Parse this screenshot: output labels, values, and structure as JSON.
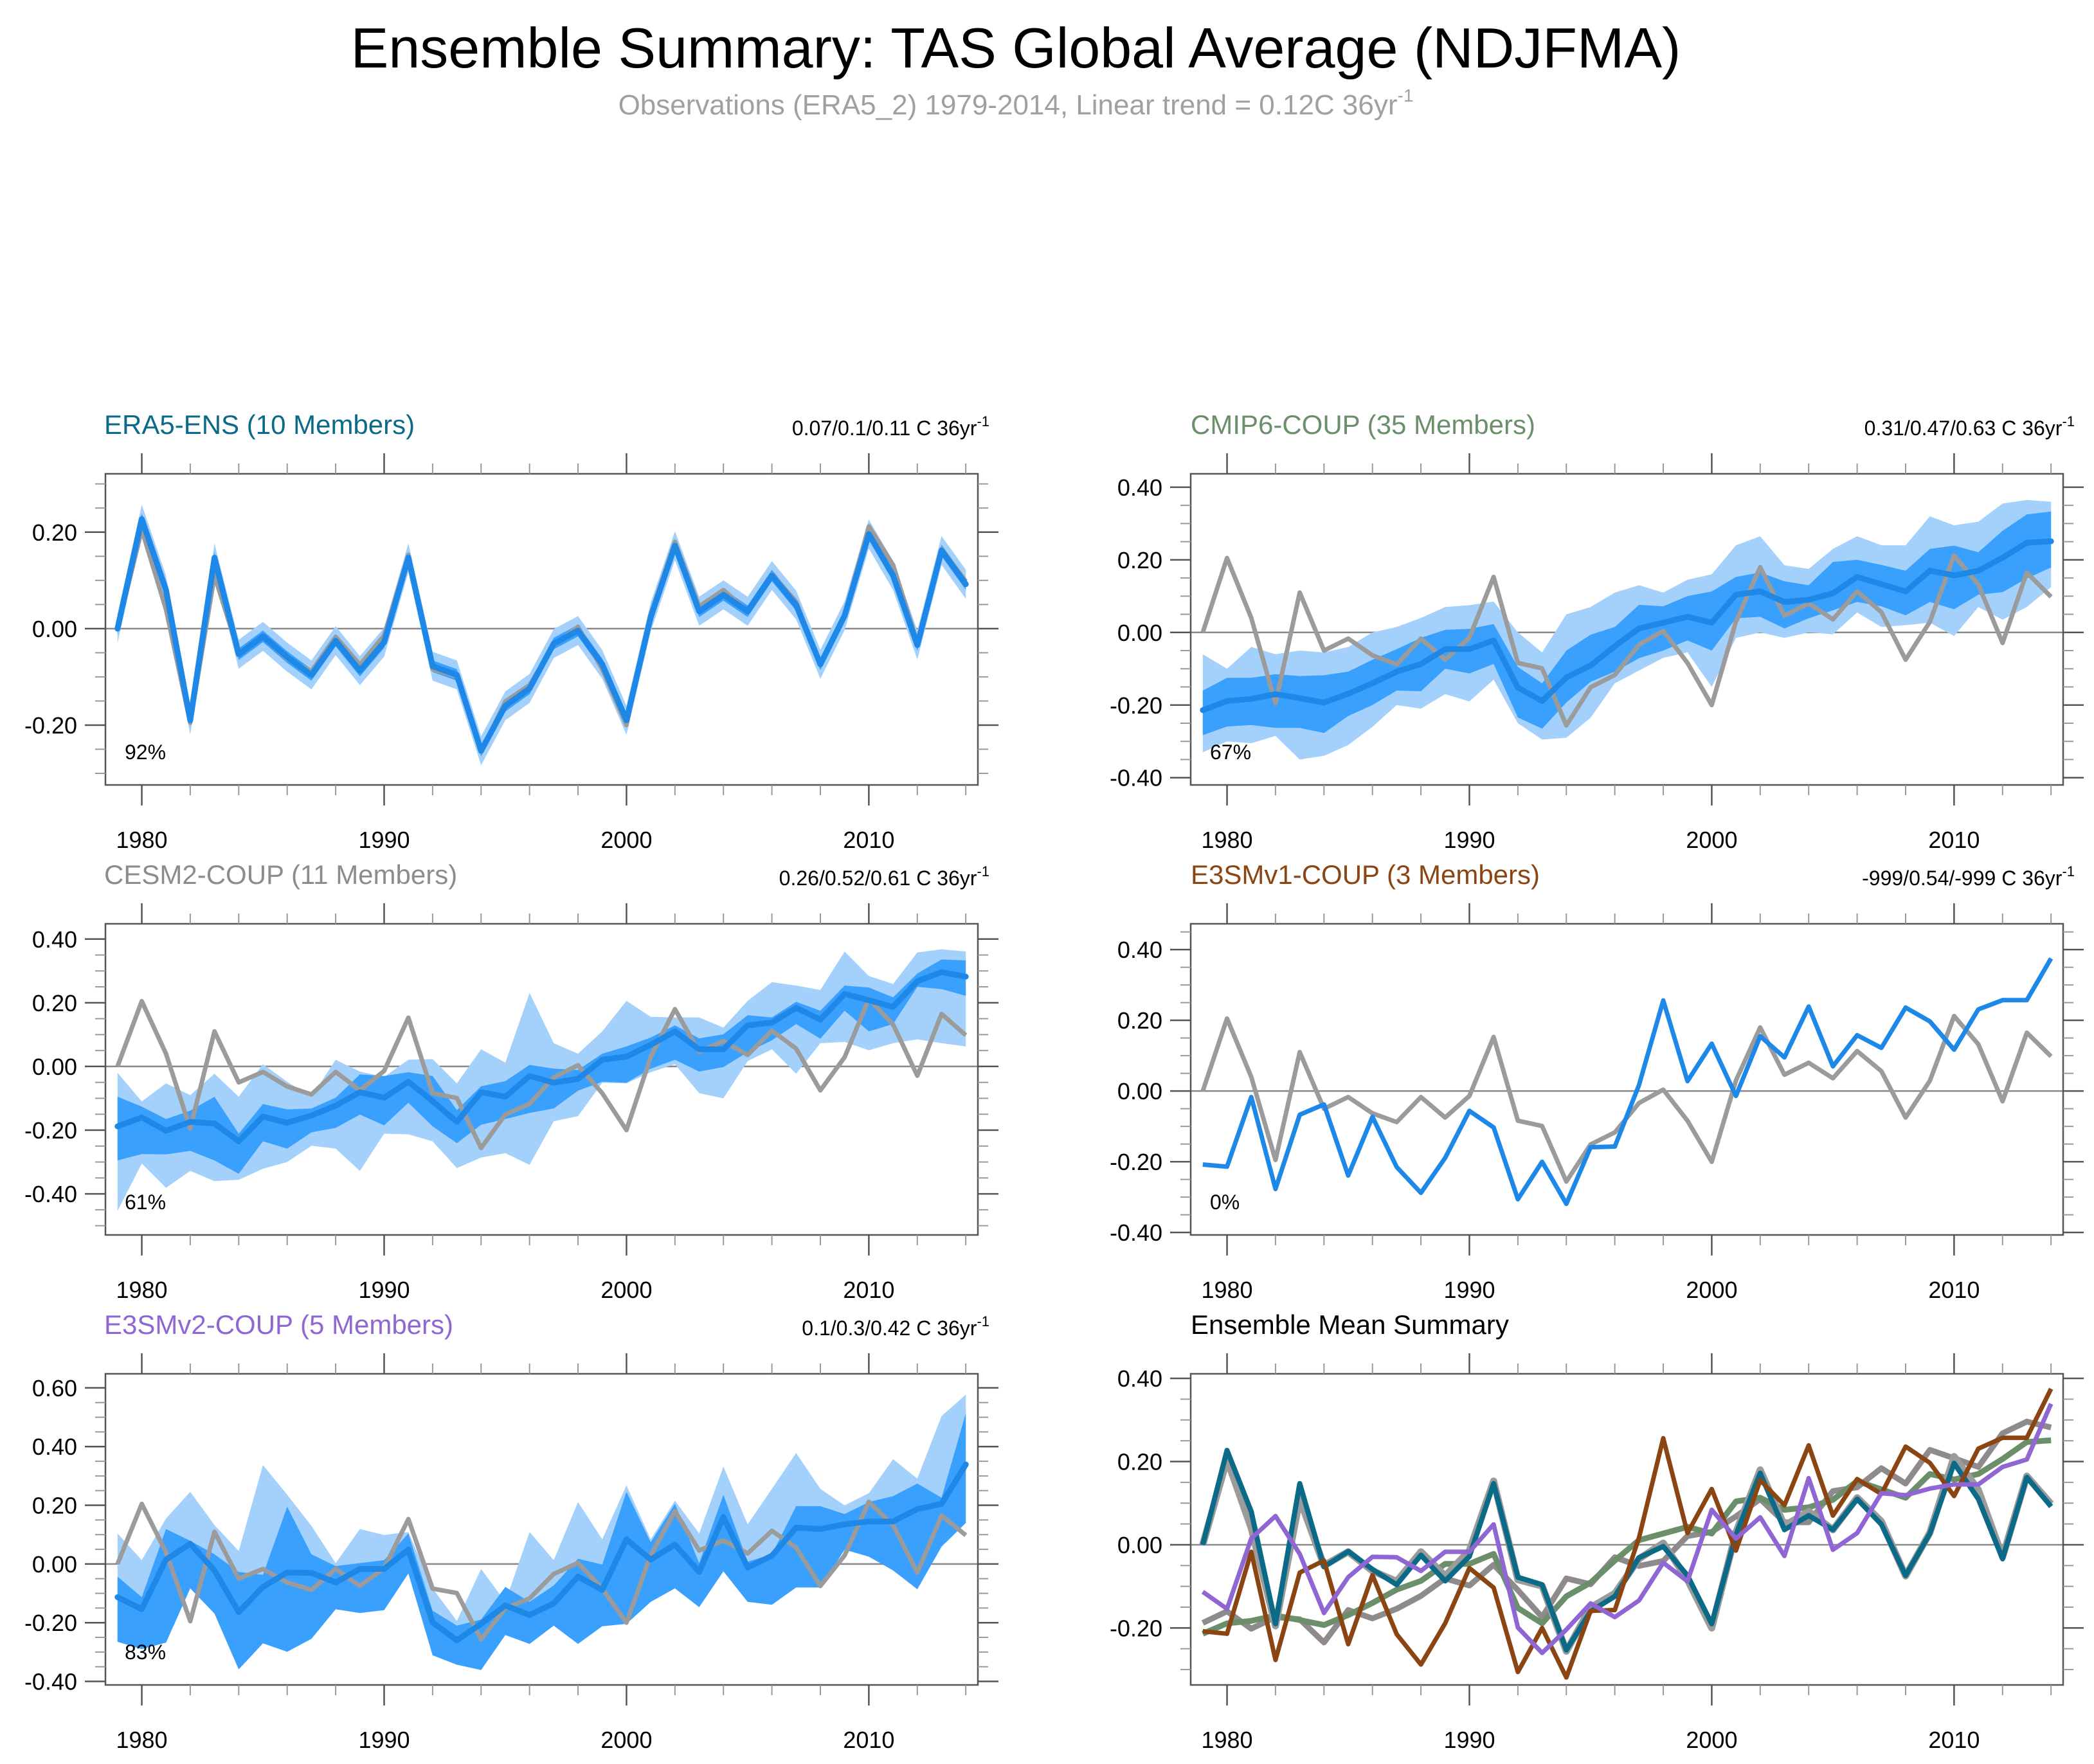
{
  "figure": {
    "title": "Ensemble Summary: TAS Global Average (NDJFMA)",
    "subtitle": "Observations (ERA5_2) 1979-2014, Linear trend = 0.12C 36yr",
    "subtitle_superscript": "-1"
  },
  "colors": {
    "observations": "#9b9b9b",
    "ensemble_mean_line": "#1e88e8",
    "band_inner": "#3aa0fe",
    "band_outer": "#a3d1fc",
    "ERA5-ENS": "#0b6a88",
    "CMIP6-COUP": "#6b8e6b",
    "CESM2-COUP": "#8f8a8c",
    "E3SMv1-COUP": "#8b4513",
    "E3SMv2-COUP": "#8f66d4",
    "summary_title": "#000000"
  },
  "chart_data": [
    {
      "type": "area",
      "id": "era5",
      "title": "ERA5-ENS (10 Members)",
      "color_key": "ERA5-ENS",
      "trend_text": "0.07/0.1/0.11 C 36yr",
      "trend_sup": "-1",
      "percent_label": "92%",
      "xlabel": "",
      "ylabel": "",
      "xticks": [
        1980,
        1990,
        2000,
        2010
      ],
      "yticks": [
        "0.20",
        "0.00",
        "-0.20"
      ],
      "ytick_values": [
        0.2,
        0.0,
        -0.2
      ],
      "ylim": [
        -0.324,
        0.321
      ],
      "minor_step": 0.05,
      "mean": [
        0.0,
        0.227,
        0.08,
        -0.19,
        0.147,
        -0.053,
        -0.016,
        -0.059,
        -0.096,
        -0.025,
        -0.087,
        -0.028,
        0.147,
        -0.078,
        -0.096,
        -0.253,
        -0.16,
        -0.124,
        -0.031,
        -0.004,
        -0.074,
        -0.19,
        0.024,
        0.172,
        0.036,
        0.07,
        0.036,
        0.11,
        0.049,
        -0.074,
        0.027,
        0.196,
        0.11,
        -0.034,
        0.162,
        0.092
      ],
      "inner_spread": 0.012,
      "outer_spread": 0.03
    },
    {
      "type": "area",
      "id": "cmip6",
      "title": "CMIP6-COUP (35 Members)",
      "color_key": "CMIP6-COUP",
      "trend_text": "0.31/0.47/0.63 C 36yr",
      "trend_sup": "-1",
      "percent_label": "67%",
      "xticks": [
        1980,
        1990,
        2000,
        2010
      ],
      "yticks": [
        "0.40",
        "0.20",
        "0.00",
        "-0.20",
        "-0.40"
      ],
      "ytick_values": [
        0.4,
        0.2,
        0.0,
        -0.2,
        -0.4
      ],
      "ylim": [
        -0.42,
        0.437
      ],
      "minor_step": 0.05,
      "mean": [
        -0.214,
        -0.189,
        -0.183,
        -0.17,
        -0.181,
        -0.193,
        -0.169,
        -0.14,
        -0.108,
        -0.087,
        -0.046,
        -0.046,
        -0.022,
        -0.152,
        -0.189,
        -0.124,
        -0.091,
        -0.038,
        0.011,
        0.027,
        0.043,
        0.027,
        0.104,
        0.113,
        0.084,
        0.09,
        0.108,
        0.153,
        0.133,
        0.113,
        0.17,
        0.157,
        0.17,
        0.206,
        0.247,
        0.251
      ],
      "inner_upper": [
        -0.16,
        -0.125,
        -0.125,
        -0.115,
        -0.12,
        -0.118,
        -0.108,
        -0.075,
        -0.046,
        -0.015,
        0.007,
        0.01,
        0.023,
        -0.095,
        -0.14,
        -0.05,
        -0.006,
        0.015,
        0.076,
        0.072,
        0.1,
        0.113,
        0.153,
        0.165,
        0.141,
        0.13,
        0.194,
        0.2,
        0.186,
        0.17,
        0.23,
        0.239,
        0.221,
        0.28,
        0.325,
        0.333
      ],
      "inner_lower": [
        -0.283,
        -0.259,
        -0.255,
        -0.263,
        -0.263,
        -0.277,
        -0.23,
        -0.2,
        -0.16,
        -0.162,
        -0.1,
        -0.113,
        -0.087,
        -0.234,
        -0.265,
        -0.193,
        -0.136,
        -0.108,
        -0.071,
        -0.05,
        -0.022,
        -0.05,
        0.039,
        0.043,
        0.011,
        0.039,
        0.061,
        0.084,
        0.072,
        0.047,
        0.084,
        0.064,
        0.104,
        0.111,
        0.149,
        0.179
      ],
      "outer_upper": [
        -0.06,
        -0.1,
        -0.04,
        -0.06,
        -0.05,
        -0.055,
        -0.04,
        0.0,
        0.015,
        0.04,
        0.07,
        0.075,
        0.085,
        0.0,
        -0.055,
        0.05,
        0.07,
        0.11,
        0.13,
        0.11,
        0.145,
        0.16,
        0.24,
        0.265,
        0.185,
        0.175,
        0.23,
        0.265,
        0.24,
        0.24,
        0.32,
        0.295,
        0.305,
        0.355,
        0.365,
        0.36
      ],
      "outer_lower": [
        -0.33,
        -0.3,
        -0.305,
        -0.285,
        -0.35,
        -0.34,
        -0.31,
        -0.26,
        -0.2,
        -0.21,
        -0.17,
        -0.19,
        -0.13,
        -0.25,
        -0.295,
        -0.29,
        -0.235,
        -0.14,
        -0.105,
        -0.07,
        -0.055,
        -0.15,
        -0.015,
        0.0,
        -0.015,
        0.0,
        -0.005,
        0.055,
        0.015,
        0.02,
        0.027,
        -0.01,
        0.07,
        0.035,
        0.07,
        0.125
      ]
    },
    {
      "type": "area",
      "id": "cesm2",
      "title": "CESM2-COUP (11 Members)",
      "color_key": "CESM2-COUP",
      "trend_text": "0.26/0.52/0.61 C 36yr",
      "trend_sup": "-1",
      "percent_label": "61%",
      "xticks": [
        1980,
        1990,
        2000,
        2010
      ],
      "yticks": [
        "0.40",
        "0.20",
        "0.00",
        "-0.20",
        "-0.40"
      ],
      "ytick_values": [
        0.4,
        0.2,
        0.0,
        -0.2,
        -0.4
      ],
      "ylim": [
        -0.529,
        0.448
      ],
      "minor_step": 0.05,
      "mean": [
        -0.188,
        -0.16,
        -0.202,
        -0.174,
        -0.179,
        -0.235,
        -0.157,
        -0.177,
        -0.154,
        -0.123,
        -0.081,
        -0.098,
        -0.048,
        -0.109,
        -0.174,
        -0.081,
        -0.095,
        -0.03,
        -0.051,
        -0.039,
        0.021,
        0.031,
        0.068,
        0.11,
        0.054,
        0.054,
        0.129,
        0.138,
        0.184,
        0.147,
        0.228,
        0.208,
        0.187,
        0.268,
        0.296,
        0.282
      ],
      "inner_upper": [
        -0.095,
        -0.126,
        -0.165,
        -0.139,
        -0.095,
        -0.211,
        -0.118,
        -0.135,
        -0.132,
        -0.098,
        -0.025,
        -0.03,
        -0.018,
        -0.03,
        -0.137,
        -0.062,
        -0.046,
        0.005,
        -0.007,
        -0.011,
        0.04,
        0.063,
        0.091,
        0.129,
        0.088,
        0.101,
        0.161,
        0.154,
        0.203,
        0.175,
        0.254,
        0.248,
        0.217,
        0.292,
        0.336,
        0.333
      ],
      "inner_lower": [
        -0.295,
        -0.275,
        -0.276,
        -0.265,
        -0.295,
        -0.337,
        -0.235,
        -0.258,
        -0.207,
        -0.193,
        -0.151,
        -0.185,
        -0.114,
        -0.188,
        -0.241,
        -0.183,
        -0.165,
        -0.146,
        -0.132,
        -0.076,
        -0.048,
        -0.051,
        -0.007,
        0.021,
        -0.016,
        -0.002,
        0.045,
        0.082,
        0.133,
        0.087,
        0.175,
        0.11,
        0.133,
        0.25,
        0.243,
        0.222
      ],
      "outer_upper": [
        -0.02,
        -0.11,
        -0.053,
        -0.09,
        -0.023,
        -0.095,
        0.007,
        -0.048,
        -0.095,
        0.021,
        -0.016,
        -0.033,
        0.021,
        0.023,
        -0.053,
        0.054,
        0.012,
        0.231,
        0.073,
        0.04,
        0.11,
        0.206,
        0.156,
        0.154,
        0.154,
        0.122,
        0.206,
        0.265,
        0.254,
        0.24,
        0.361,
        0.284,
        0.259,
        0.358,
        0.368,
        0.361
      ],
      "outer_lower": [
        -0.454,
        -0.305,
        -0.381,
        -0.328,
        -0.36,
        -0.356,
        -0.321,
        -0.3,
        -0.249,
        -0.258,
        -0.328,
        -0.211,
        -0.213,
        -0.235,
        -0.319,
        -0.286,
        -0.272,
        -0.309,
        -0.172,
        -0.156,
        -0.051,
        -0.053,
        -0.018,
        0.007,
        -0.084,
        -0.1,
        0.017,
        0.054,
        -0.023,
        0.073,
        0.077,
        0.051,
        0.073,
        0.085,
        0.073,
        0.063
      ]
    },
    {
      "type": "line",
      "id": "e3smv1",
      "title": "E3SMv1-COUP (3 Members)",
      "color_key": "E3SMv1-COUP",
      "trend_text": "-999/0.54/-999 C 36yr",
      "trend_sup": "-1",
      "percent_label": "0%",
      "xticks": [
        1980,
        1990,
        2000,
        2010
      ],
      "yticks": [
        "0.40",
        "0.20",
        "0.00",
        "-0.20",
        "-0.40"
      ],
      "ytick_values": [
        0.4,
        0.2,
        0.0,
        -0.2,
        -0.4
      ],
      "ylim": [
        -0.407,
        0.473
      ],
      "minor_step": 0.05,
      "mean": [
        -0.208,
        -0.214,
        -0.017,
        -0.277,
        -0.067,
        -0.038,
        -0.239,
        -0.073,
        -0.215,
        -0.288,
        -0.189,
        -0.056,
        -0.103,
        -0.306,
        -0.2,
        -0.319,
        -0.159,
        -0.157,
        0.017,
        0.256,
        0.028,
        0.134,
        -0.014,
        0.155,
        0.095,
        0.239,
        0.07,
        0.158,
        0.122,
        0.236,
        0.197,
        0.117,
        0.231,
        0.257,
        0.257,
        0.375
      ]
    },
    {
      "type": "area",
      "id": "e3smv2",
      "title": "E3SMv2-COUP (5 Members)",
      "color_key": "E3SMv2-COUP",
      "trend_text": "0.1/0.3/0.42 C 36yr",
      "trend_sup": "-1",
      "percent_label": "83%",
      "xticks": [
        1980,
        1990,
        2000,
        2010
      ],
      "yticks": [
        "0.60",
        "0.40",
        "0.20",
        "0.00",
        "-0.20",
        "-0.40"
      ],
      "ytick_values": [
        0.6,
        0.4,
        0.2,
        0.0,
        -0.2,
        -0.4
      ],
      "ylim": [
        -0.412,
        0.648
      ],
      "minor_step": 0.05,
      "mean": [
        -0.113,
        -0.154,
        0.015,
        0.069,
        -0.022,
        -0.164,
        -0.078,
        -0.029,
        -0.03,
        -0.063,
        -0.017,
        -0.017,
        0.049,
        -0.199,
        -0.26,
        -0.204,
        -0.141,
        -0.174,
        -0.134,
        -0.043,
        -0.088,
        0.084,
        0.015,
        0.066,
        -0.027,
        0.16,
        -0.012,
        0.028,
        0.124,
        0.119,
        0.135,
        0.145,
        0.145,
        0.187,
        0.205,
        0.339
      ],
      "inner_upper": [
        -0.043,
        -0.113,
        0.119,
        0.079,
        0.033,
        -0.027,
        -0.037,
        0.195,
        0.033,
        -0.007,
        0.003,
        0.013,
        0.104,
        -0.159,
        -0.21,
        -0.189,
        -0.078,
        -0.129,
        -0.073,
        0.018,
        -0.002,
        0.246,
        0.074,
        0.205,
        0.003,
        0.236,
        0.008,
        0.033,
        0.197,
        0.197,
        0.17,
        0.211,
        0.231,
        0.274,
        0.226,
        0.514
      ],
      "inner_lower": [
        -0.265,
        -0.29,
        -0.268,
        -0.083,
        -0.169,
        -0.359,
        -0.27,
        -0.299,
        -0.255,
        -0.154,
        -0.167,
        -0.157,
        -0.032,
        -0.311,
        -0.343,
        -0.361,
        -0.242,
        -0.272,
        -0.21,
        -0.272,
        -0.212,
        -0.204,
        -0.129,
        -0.083,
        -0.147,
        -0.025,
        -0.129,
        -0.139,
        -0.08,
        -0.08,
        0.049,
        0.025,
        -0.022,
        -0.086,
        0.059,
        0.14
      ],
      "outer_upper": [
        0.104,
        0.013,
        0.155,
        0.246,
        0.133,
        0.044,
        0.337,
        0.236,
        0.13,
        0.003,
        0.119,
        0.099,
        0.109,
        -0.083,
        -0.194,
        -0.017,
        -0.129,
        0.109,
        0.013,
        0.211,
        0.084,
        0.268,
        0.084,
        0.216,
        0.104,
        0.332,
        0.135,
        0.256,
        0.378,
        0.256,
        0.2,
        0.241,
        0.357,
        0.291,
        0.504,
        0.577
      ],
      "outer_lower": [
        -0.265,
        -0.29,
        -0.268,
        -0.083,
        -0.169,
        -0.359,
        -0.27,
        -0.299,
        -0.255,
        -0.154,
        -0.167,
        -0.157,
        -0.032,
        -0.311,
        -0.343,
        -0.361,
        -0.242,
        -0.272,
        -0.21,
        -0.272,
        -0.212,
        -0.204,
        -0.129,
        -0.083,
        -0.147,
        -0.025,
        -0.129,
        -0.139,
        -0.08,
        -0.08,
        0.049,
        0.025,
        -0.022,
        -0.086,
        0.059,
        0.14
      ]
    },
    {
      "type": "line",
      "id": "summary",
      "title": "Ensemble Mean Summary",
      "color_key": "summary_title",
      "trend_text": "",
      "trend_sup": "",
      "percent_label": "",
      "xticks": [
        1980,
        1990,
        2000,
        2010
      ],
      "yticks": [
        "0.40",
        "0.20",
        "0.00",
        "-0.20"
      ],
      "ytick_values": [
        0.4,
        0.2,
        0.0,
        -0.2
      ],
      "ylim": [
        -0.337,
        0.411
      ],
      "minor_step": 0.05,
      "series_refs": [
        "observations",
        "CESM2-COUP",
        "CMIP6-COUP",
        "E3SMv1-COUP",
        "E3SMv2-COUP",
        "ERA5-ENS"
      ]
    }
  ],
  "observations": {
    "name": "Observations (ERA5_2)",
    "years": [
      1979,
      1980,
      1981,
      1982,
      1983,
      1984,
      1985,
      1986,
      1987,
      1988,
      1989,
      1990,
      1991,
      1992,
      1993,
      1994,
      1995,
      1996,
      1997,
      1998,
      1999,
      2000,
      2001,
      2002,
      2003,
      2004,
      2005,
      2006,
      2007,
      2008,
      2009,
      2010,
      2011,
      2012,
      2013,
      2014
    ],
    "values": [
      0.0,
      0.205,
      0.04,
      -0.195,
      0.11,
      -0.05,
      -0.017,
      -0.063,
      -0.088,
      -0.017,
      -0.075,
      -0.014,
      0.153,
      -0.084,
      -0.099,
      -0.256,
      -0.151,
      -0.117,
      -0.034,
      0.004,
      -0.084,
      -0.2,
      0.03,
      0.18,
      0.046,
      0.08,
      0.036,
      0.113,
      0.056,
      -0.075,
      0.029,
      0.212,
      0.132,
      -0.029,
      0.165,
      0.098
    ]
  },
  "shared_axis": {
    "x_range": [
      1978.5,
      2014.5
    ]
  }
}
